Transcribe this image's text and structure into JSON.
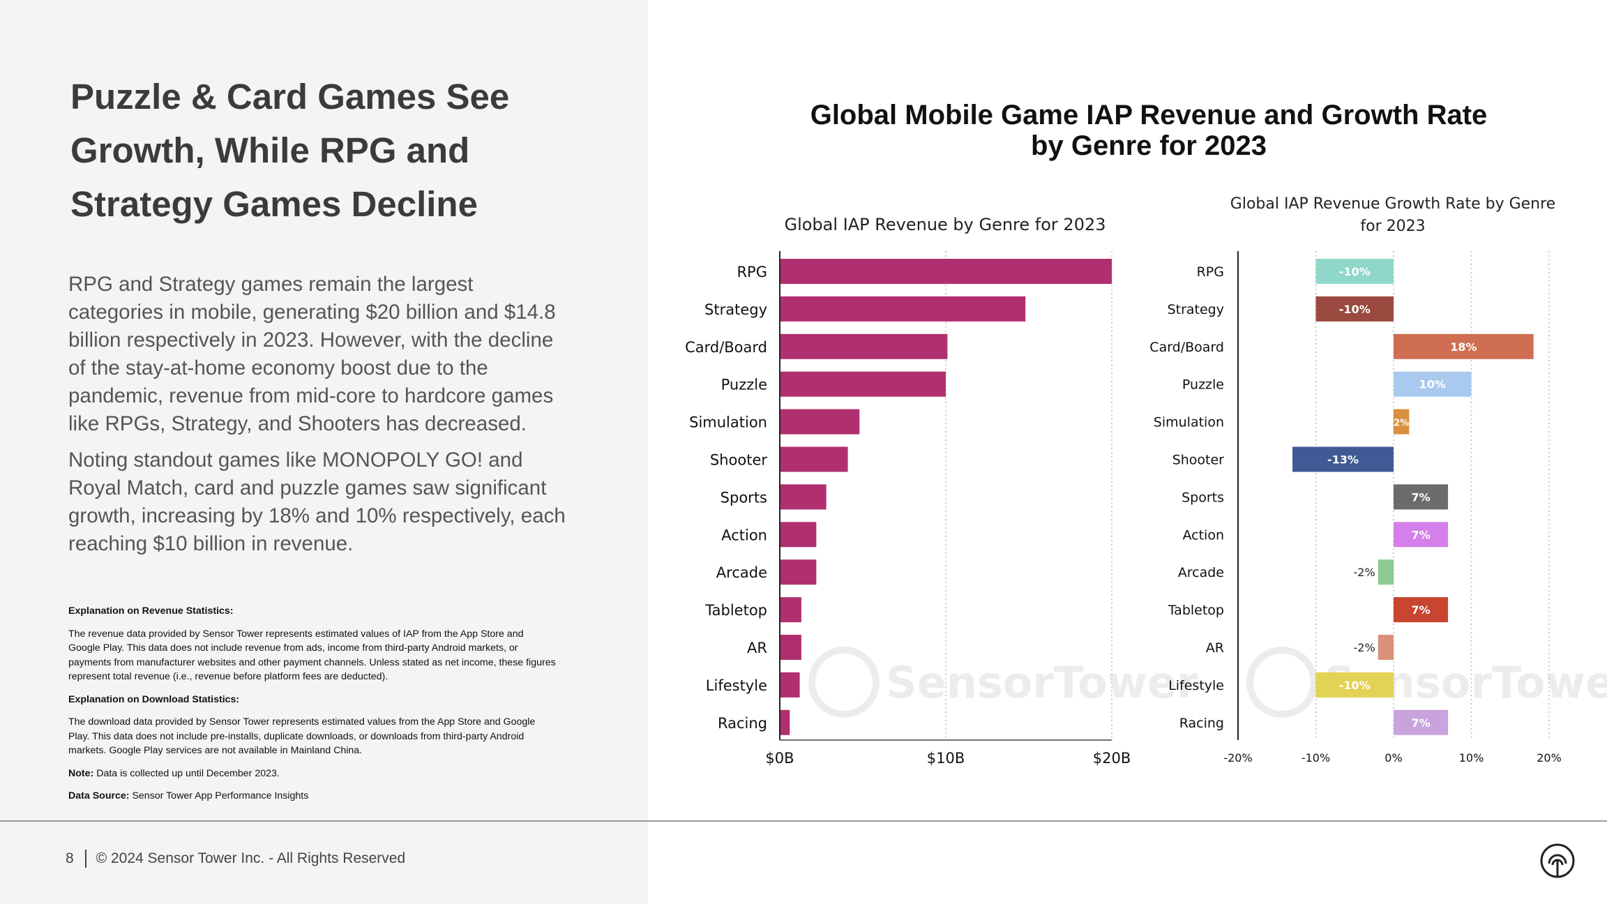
{
  "left": {
    "title": "Puzzle & Card Games See Growth, While RPG and Strategy Games Decline",
    "paragraphs": [
      "RPG and Strategy games remain the largest categories in mobile, generating $20 billion and $14.8 billion respectively in 2023. However, with the decline of the stay-at-home economy boost due to the pandemic, revenue from mid-core to hardcore games like RPGs, Strategy, and Shooters has decreased.",
      "Noting standout games like MONOPOLY GO! and Royal Match, card and puzzle games saw significant growth, increasing by 18% and 10% respectively, each reaching $10 billion in revenue."
    ],
    "notes": {
      "revenue_heading": "Explanation on Revenue Statistics:",
      "revenue_text": "The revenue data provided by Sensor Tower represents estimated values of IAP from the App Store and Google Play. This data does not include revenue from ads, income from third-party Android markets, or payments from manufacturer websites and other payment channels. Unless stated as net income, these figures represent total revenue (i.e., revenue before platform fees are deducted).",
      "download_heading": "Explanation on Download Statistics:",
      "download_text": "The download data provided by Sensor Tower represents estimated values from the App Store and Google Play. This data does not include pre-installs, duplicate downloads, or downloads from third-party Android markets. Google Play services are not available in Mainland China.",
      "note_label": "Note:",
      "note_text": " Data is collected up until December 2023.",
      "source_label": "Data Source:",
      "source_text": " Sensor Tower App Performance Insights"
    }
  },
  "footer": {
    "page_number": "8",
    "copyright": "© 2024 Sensor Tower Inc. - All Rights Reserved",
    "logo_icon": "sensor-tower-logo-icon"
  },
  "watermark": "SensorTower",
  "main_title_lines": [
    "Global Mobile Game IAP Revenue and Growth Rate",
    "by Genre for 2023"
  ],
  "chart_data": [
    {
      "type": "bar",
      "orientation": "horizontal",
      "title": "Global IAP Revenue by Genre for 2023",
      "categories": [
        "RPG",
        "Strategy",
        "Card/Board",
        "Puzzle",
        "Simulation",
        "Shooter",
        "Sports",
        "Action",
        "Arcade",
        "Tabletop",
        "AR",
        "Lifestyle",
        "Racing"
      ],
      "values": [
        20.0,
        14.8,
        10.1,
        10.0,
        4.8,
        4.1,
        2.8,
        2.2,
        2.2,
        1.3,
        1.3,
        1.2,
        0.6
      ],
      "unit": "$B",
      "xlim": [
        0,
        20
      ],
      "xticks": [
        "$0B",
        "$10B",
        "$20B"
      ],
      "grid": true,
      "color": "#b0306f"
    },
    {
      "type": "bar",
      "orientation": "horizontal",
      "title_lines": [
        "Global IAP Revenue Growth Rate by Genre",
        "for 2023"
      ],
      "categories": [
        "RPG",
        "Strategy",
        "Card/Board",
        "Puzzle",
        "Simulation",
        "Shooter",
        "Sports",
        "Action",
        "Arcade",
        "Tabletop",
        "AR",
        "Lifestyle",
        "Racing"
      ],
      "values": [
        -10,
        -10,
        18,
        10,
        2,
        -13,
        7,
        7,
        -2,
        7,
        -2,
        -10,
        7
      ],
      "labels": [
        "-10%",
        "-10%",
        "18%",
        "10%",
        "2%",
        "-13%",
        "7%",
        "7%",
        "-2%",
        "7%",
        "-2%",
        "-10%",
        "7%"
      ],
      "unit": "%",
      "xlim": [
        -20,
        20
      ],
      "xticks": [
        "-20%",
        "-10%",
        "0%",
        "10%",
        "20%"
      ],
      "grid": true,
      "colors": [
        "#8fd8c9",
        "#9a4a3f",
        "#cf6e52",
        "#a9c9ee",
        "#d9903f",
        "#3f5a94",
        "#6b6b6b",
        "#d580ea",
        "#8ccb91",
        "#c8452f",
        "#d9917a",
        "#e3d354",
        "#c8a3de"
      ]
    }
  ]
}
